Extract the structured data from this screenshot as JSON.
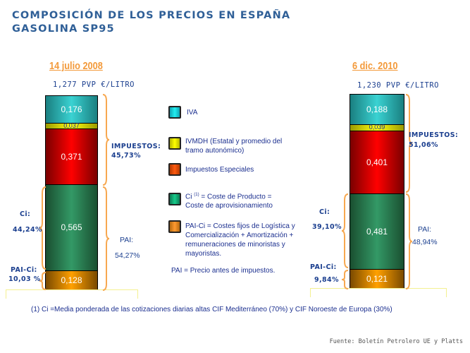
{
  "title_line1": "COMPOSICIÓN DE LOS PRECIOS EN ESPAÑA",
  "title_line2": "GASOLINA SP95",
  "colors": {
    "iva": "#33c6c6",
    "ivmdh": "#e6e600",
    "impuestos_especiales": "#e60000",
    "ci": "#2e8f5f",
    "pai_ci": "#f39a10",
    "date_color": "#f39a3b",
    "text_blue": "#1b3f8f",
    "brace": "#f7a850"
  },
  "chart_data": {
    "type": "bar",
    "subtype": "stacked",
    "title": "COMPOSICIÓN DE LOS PRECIOS EN ESPAÑA — GASOLINA SP95",
    "unit": "€/litro",
    "categories": [
      "14 julio 2008",
      "6 dic. 2010"
    ],
    "series": [
      {
        "name": "PAI-Ci",
        "values": [
          0.128,
          0.121
        ]
      },
      {
        "name": "Ci",
        "values": [
          0.565,
          0.481
        ]
      },
      {
        "name": "Impuestos Especiales",
        "values": [
          0.371,
          0.401
        ]
      },
      {
        "name": "IVMDH",
        "values": [
          0.037,
          0.039
        ]
      },
      {
        "name": "IVA",
        "values": [
          0.176,
          0.188
        ]
      }
    ],
    "totals": [
      1.277,
      1.23
    ]
  },
  "bars": [
    {
      "date": "14 julio 2008",
      "pvp": "1,277 PVP €/LITRO",
      "segments": {
        "iva": "0,176",
        "ivmdh": "0,037",
        "ie": "0,371",
        "ci": "0,565",
        "paici": "0,128"
      },
      "values": {
        "iva": 0.176,
        "ivmdh": 0.037,
        "ie": 0.371,
        "ci": 0.565,
        "paici": 0.128
      },
      "impuestos_label": "IMPUESTOS:",
      "impuestos_pct": "45,73%",
      "ci_label": "Ci:",
      "ci_pct": "44,24%",
      "pai_label": "PAI:",
      "pai_pct": "54,27%",
      "paici_label": "PAI-Ci:",
      "paici_pct": "10,03 %"
    },
    {
      "date": "6 dic. 2010",
      "pvp": "1,230 PVP €/LITRO",
      "segments": {
        "iva": "0,188",
        "ivmdh": "0,039",
        "ie": "0,401",
        "ci": "0,481",
        "paici": "0,121"
      },
      "values": {
        "iva": 0.188,
        "ivmdh": 0.039,
        "ie": 0.401,
        "ci": 0.481,
        "paici": 0.121
      },
      "impuestos_label": "IMPUESTOS:",
      "impuestos_pct": "51,06%",
      "ci_label": "Ci:",
      "ci_pct": "39,10%",
      "pai_label": "PAI:",
      "pai_pct": "48,94%",
      "paici_label": "PAI-Ci:",
      "paici_pct": "9,84%"
    }
  ],
  "legend": [
    {
      "key": "iva",
      "text": "IVA"
    },
    {
      "key": "ivmdh",
      "text": "IVMDH (Estatal y promedio del tramo autonómico)"
    },
    {
      "key": "ie",
      "text": "Impuestos Especiales"
    },
    {
      "key": "ci",
      "text": "Ci (1) = Coste de Producto = Coste de aprovisionamiento"
    },
    {
      "key": "paici",
      "text": "PAI-Ci = Costes fijos de Logística y Comercialización + Amortización + remuneraciones de minoristas y mayoristas."
    }
  ],
  "legend_ci_prefix": "Ci",
  "legend_ci_sup": "(1)",
  "legend_ci_rest": "= Coste de Producto = Coste de aprovisionamiento",
  "pai_definition": "PAI  =  Precio antes de impuestos.",
  "footnote": "(1) Ci =Media ponderada de las cotizaciones diarias altas CIF Mediterráneo (70%) y CIF Noroeste de Europa (30%)",
  "source": "Fuente: Boletín Petrolero UE y Platts"
}
